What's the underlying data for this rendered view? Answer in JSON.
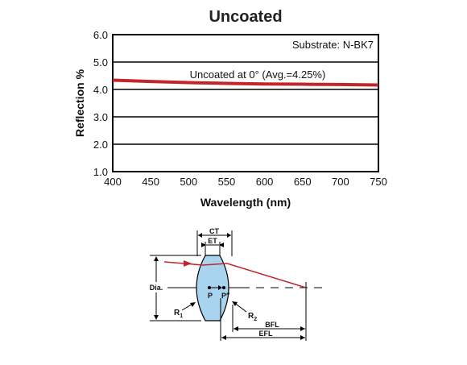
{
  "chart_data": {
    "type": "line",
    "title": "Uncoated",
    "xlabel": "Wavelength (nm)",
    "ylabel": "Reflection %",
    "xlim": [
      400,
      750
    ],
    "ylim": [
      1.0,
      6.0
    ],
    "x_ticks": [
      "400",
      "450",
      "500",
      "550",
      "600",
      "650",
      "700",
      "750"
    ],
    "y_ticks": [
      "6.0",
      "5.0",
      "4.0",
      "3.0",
      "2.0",
      "1.0"
    ],
    "annotation_substrate": "Substrate: N-BK7",
    "series": [
      {
        "name": "Uncoated at 0°  (Avg.=4.25%)",
        "color": "#c0272d",
        "x": [
          400,
          450,
          500,
          550,
          600,
          650,
          700,
          750
        ],
        "y": [
          4.34,
          4.29,
          4.25,
          4.22,
          4.2,
          4.19,
          4.18,
          4.16
        ]
      }
    ],
    "grid": "horizontal"
  },
  "diagram": {
    "labels": {
      "ct": "CT",
      "et": "ET",
      "dia": "Dia.",
      "p": "P",
      "p_prime": "P″",
      "r1": "R",
      "r1_sub": "1",
      "r2": "R",
      "r2_sub": "2",
      "bfl": "BFL",
      "efl": "EFL"
    },
    "colors": {
      "lens_fill": "#a9d4ef",
      "ray": "#c0272d"
    }
  }
}
